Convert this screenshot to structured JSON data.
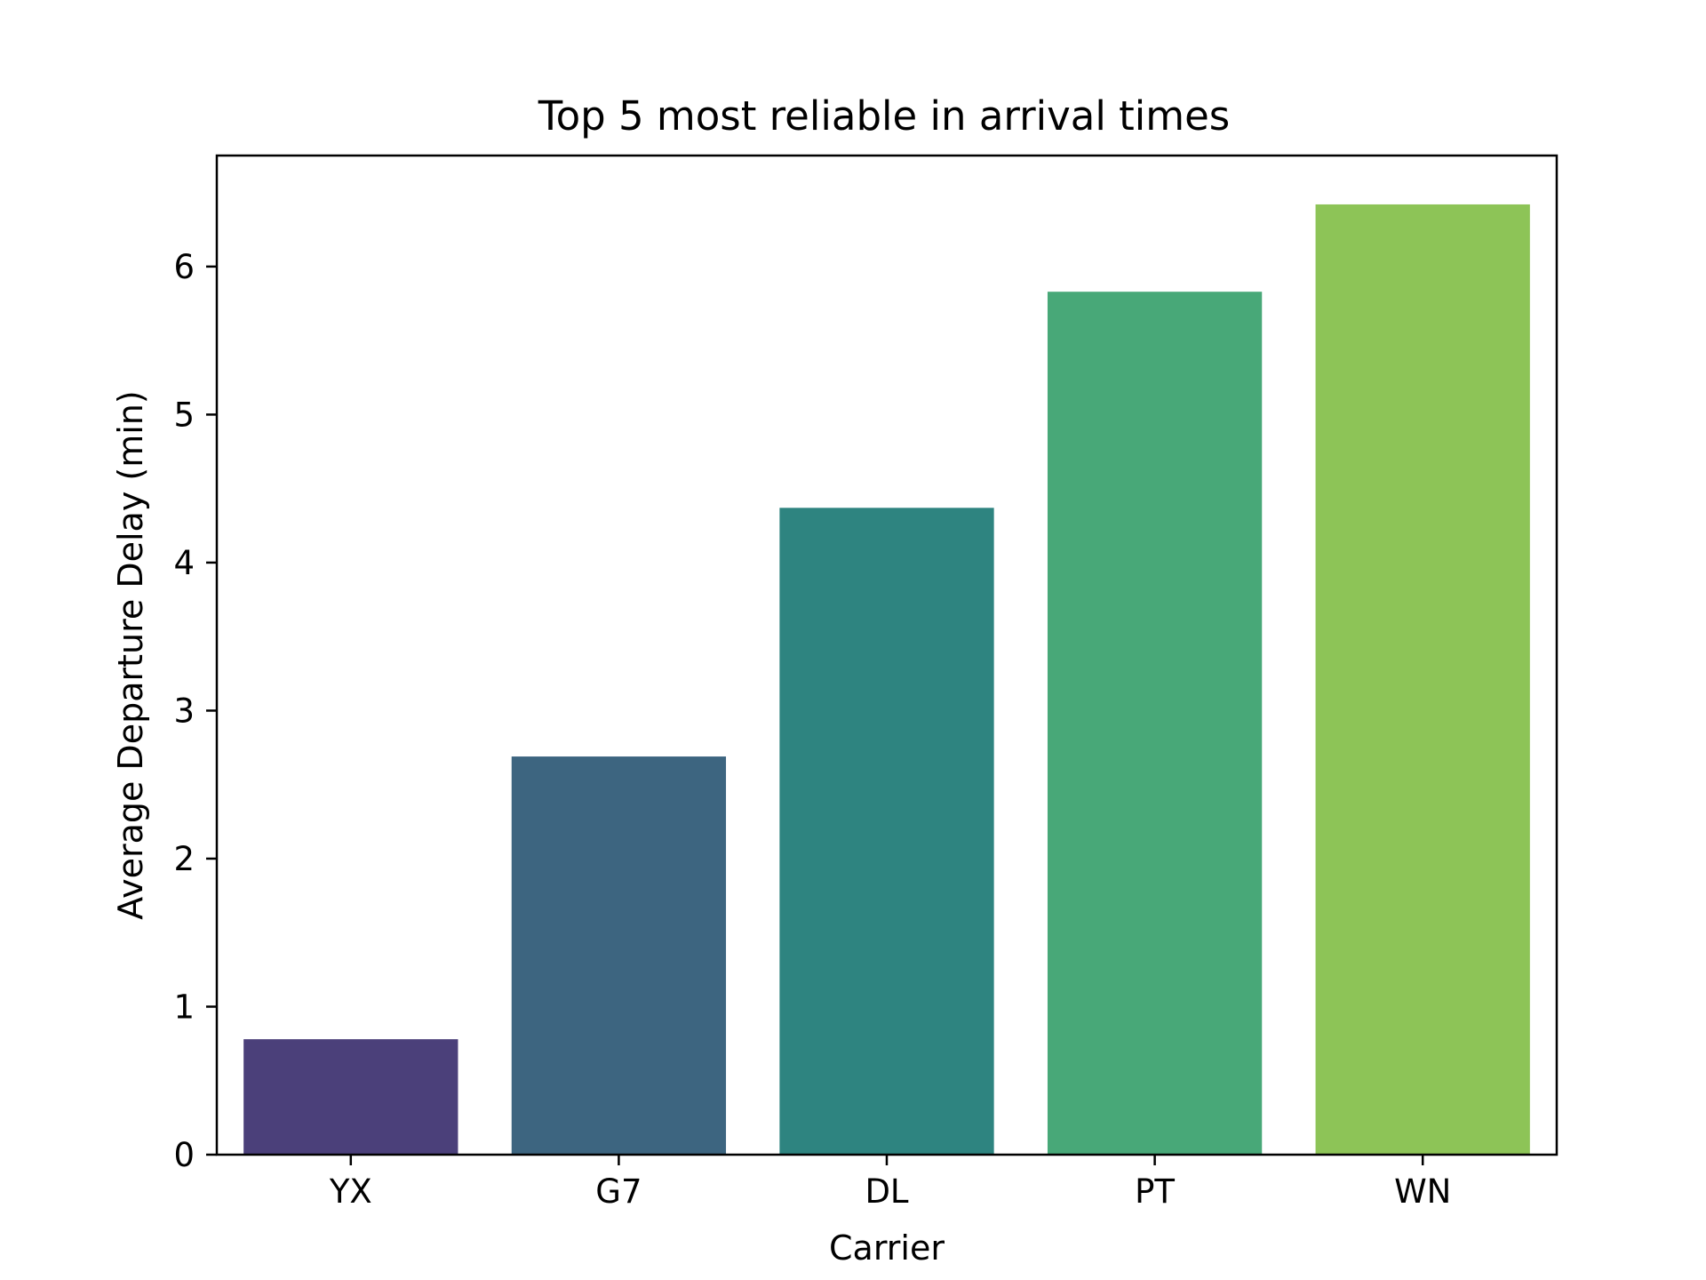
{
  "chart_data": {
    "type": "bar",
    "title": "Top 5 most reliable in arrival times",
    "xlabel": "Carrier",
    "ylabel": "Average Departure Delay (min)",
    "categories": [
      "YX",
      "G7",
      "DL",
      "PT",
      "WN"
    ],
    "values": [
      0.78,
      2.69,
      4.37,
      5.83,
      6.42
    ],
    "colors": [
      "#4b407a",
      "#3d6580",
      "#2e8480",
      "#48a878",
      "#8dc457"
    ],
    "ylim": [
      0,
      6.75
    ],
    "yticks": [
      0,
      1,
      2,
      3,
      4,
      5,
      6
    ],
    "grid": false,
    "legend": "none"
  }
}
